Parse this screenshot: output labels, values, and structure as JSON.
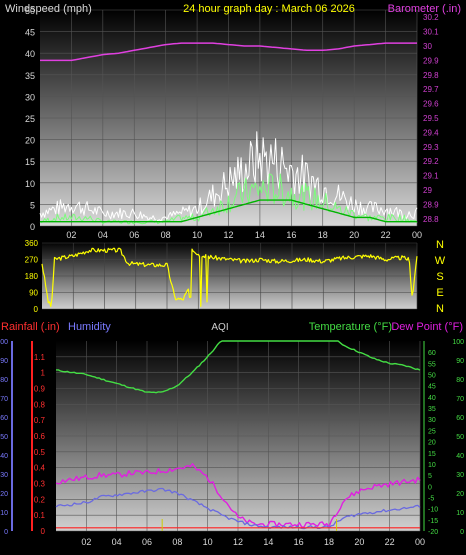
{
  "header": {
    "left": "Windspeed (mph)",
    "title": "24 hour graph day : March 06 2026",
    "right": "Barometer (.in)"
  },
  "time_ticks": [
    "02",
    "04",
    "06",
    "08",
    "10",
    "12",
    "14",
    "16",
    "18",
    "20",
    "22",
    "00"
  ],
  "direction_labels": [
    "N",
    "W",
    "S",
    "E",
    "N"
  ],
  "colors": {
    "wind": "#ffffff",
    "gust": "#7cfc7c",
    "avg": "#00b400",
    "baro": "#e040e0",
    "dir": "#ffff00",
    "temp": "#44dd44",
    "dew": "#e020e0",
    "humidity": "#6a6ae0",
    "rain": "#ff2020",
    "tickW": "#d8d8d8",
    "tickB": "#d040d0",
    "tickY": "#ffff00",
    "tickR": "#ff3030",
    "tickH": "#7a7aff",
    "tickT": "#44dd44"
  },
  "bottom_header": {
    "rain": "Rainfall (.in)",
    "humidity": "Humidity",
    "aqi": "AQI",
    "temp": "Temperature (°F)",
    "dew": "Dew Point (°F)"
  },
  "chart_data": [
    {
      "type": "line",
      "title": "24 hour graph day : March 06 2026",
      "x": [
        0,
        1,
        2,
        3,
        4,
        5,
        6,
        7,
        8,
        9,
        10,
        11,
        12,
        13,
        14,
        15,
        16,
        17,
        18,
        19,
        20,
        21,
        22,
        23,
        24
      ],
      "y_left": {
        "label": "Windspeed (mph)",
        "ylim": [
          0,
          50
        ],
        "ticks": [
          0,
          5,
          10,
          15,
          20,
          25,
          30,
          35,
          40,
          45,
          50
        ]
      },
      "y_right": {
        "label": "Barometer (.in)",
        "ylim": [
          28.75,
          30.25
        ],
        "ticks": [
          "28.8",
          "28.9",
          "29",
          "29.1",
          "29.2",
          "29.3",
          "29.4",
          "29.5",
          "29.6",
          "29.7",
          "29.8",
          "29.9",
          "30",
          "30.1",
          "30.2"
        ]
      },
      "series": [
        {
          "name": "Barometer",
          "axis": "right",
          "values": [
            29.9,
            29.9,
            29.9,
            29.92,
            29.94,
            29.95,
            29.97,
            29.99,
            30.01,
            30.02,
            30.02,
            30.02,
            30.01,
            30.0,
            30.0,
            29.99,
            29.98,
            29.97,
            29.97,
            29.98,
            30.0,
            30.01,
            30.02,
            30.02,
            30.02
          ]
        },
        {
          "name": "Wind gust",
          "axis": "left",
          "values": [
            3,
            4,
            5,
            4,
            3,
            3,
            3,
            2,
            2,
            3,
            4,
            7,
            10,
            13,
            16,
            15,
            13,
            11,
            9,
            7,
            5,
            4,
            4,
            3,
            3
          ]
        },
        {
          "name": "Wind speed",
          "axis": "left",
          "values": [
            1,
            2,
            2,
            2,
            1,
            1,
            1,
            1,
            1,
            2,
            2,
            4,
            6,
            8,
            9,
            9,
            8,
            7,
            6,
            4,
            3,
            2,
            2,
            2,
            1
          ]
        },
        {
          "name": "Wind average",
          "axis": "left",
          "values": [
            1,
            1,
            1,
            1,
            1,
            1,
            1,
            1,
            1,
            1,
            2,
            3,
            4,
            5,
            6,
            6,
            6,
            5,
            4,
            3,
            2,
            2,
            1,
            1,
            1
          ]
        }
      ]
    },
    {
      "type": "line",
      "y_left": {
        "ylim": [
          0,
          360
        ],
        "ticks": [
          "0",
          "90",
          "180",
          "270",
          "360"
        ]
      },
      "y_right": {
        "ticks": [
          "N",
          "W",
          "S",
          "E",
          "N"
        ]
      },
      "series": [
        {
          "name": "Wind direction",
          "x": [
            0,
            0.4,
            0.6,
            0.8,
            1,
            2,
            3,
            4,
            5,
            5.5,
            6,
            7,
            8,
            8.5,
            9,
            9.4,
            9.6,
            10,
            11,
            12,
            13,
            14,
            15,
            16,
            17,
            18,
            19,
            20,
            21,
            22,
            23,
            23.5,
            23.7,
            24
          ],
          "values": [
            250,
            40,
            10,
            270,
            275,
            290,
            320,
            320,
            320,
            250,
            245,
            240,
            240,
            60,
            50,
            110,
            330,
            300,
            280,
            270,
            260,
            270,
            260,
            265,
            270,
            260,
            275,
            285,
            290,
            270,
            280,
            270,
            60,
            290
          ]
        }
      ]
    },
    {
      "type": "line",
      "title": "",
      "x": [
        0,
        1,
        2,
        3,
        4,
        5,
        6,
        7,
        8,
        9,
        10,
        11,
        12,
        13,
        14,
        15,
        16,
        17,
        18,
        19,
        20,
        21,
        22,
        23,
        24
      ],
      "y_rain": {
        "label": "Rainfall (.in)",
        "ylim": [
          0,
          1.2
        ],
        "ticks": [
          "0",
          "0.1",
          "0.2",
          "0.3",
          "0.4",
          "0.5",
          "0.6",
          "0.7",
          "0.8",
          "0.9",
          "1",
          "1.1"
        ]
      },
      "y_humidity": {
        "label": "Humidity",
        "ylim": [
          0,
          100
        ],
        "ticks": [
          "0",
          "10",
          "20",
          "30",
          "40",
          "50",
          "60",
          "70",
          "80",
          "90",
          "100"
        ]
      },
      "y_temp": {
        "label": "Temperature (°F)",
        "ylim": [
          -20,
          65
        ],
        "ticks": [
          "-20",
          "-15",
          "-10",
          "-5",
          "0",
          "5",
          "10",
          "15",
          "20",
          "25",
          "30",
          "35",
          "40",
          "45",
          "50",
          "55",
          "60"
        ]
      },
      "y_right": {
        "ticks": [
          "0",
          "10",
          "20",
          "30",
          "40",
          "50",
          "60",
          "70",
          "80",
          "90",
          "100"
        ]
      },
      "series": [
        {
          "name": "Temperature",
          "axis": "temp",
          "values": [
            52,
            51,
            50,
            48,
            46,
            44,
            42,
            42,
            45,
            51,
            58,
            66,
            72,
            74,
            75,
            75,
            74,
            72,
            68,
            63,
            60,
            57,
            55,
            54,
            52
          ]
        },
        {
          "name": "Dew Point",
          "axis": "temp",
          "values": [
            2,
            3,
            4,
            5,
            5,
            6,
            6,
            7,
            8,
            9,
            4,
            -5,
            -14,
            -17,
            -17,
            -17,
            -17,
            -17,
            -17,
            -6,
            -2,
            0,
            1,
            2,
            3
          ]
        },
        {
          "name": "Humidity",
          "axis": "humidity",
          "values": [
            13,
            14,
            15,
            18,
            19,
            20,
            21,
            22,
            20,
            16,
            12,
            8,
            5,
            3,
            2,
            2,
            2,
            2,
            2,
            7,
            9,
            10,
            11,
            12,
            13
          ]
        },
        {
          "name": "Rainfall",
          "axis": "rain",
          "values": [
            0.02,
            0.02,
            0.02,
            0.02,
            0.02,
            0.02,
            0.02,
            0.02,
            0.02,
            0.02,
            0.02,
            0.02,
            0.02,
            0.02,
            0.02,
            0.02,
            0.02,
            0.02,
            0.02,
            0.02,
            0.02,
            0.02,
            0.02,
            0.02,
            0.02
          ]
        }
      ]
    }
  ]
}
